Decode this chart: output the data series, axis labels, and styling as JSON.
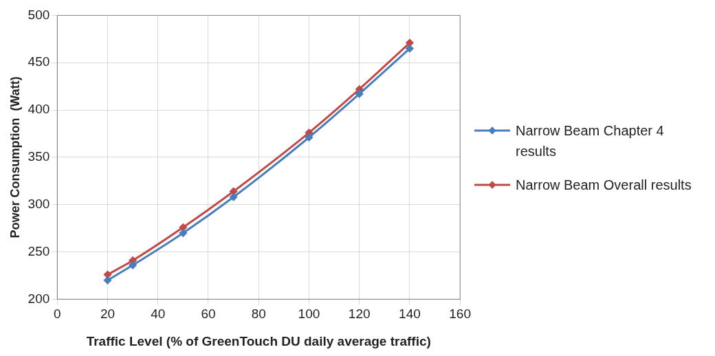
{
  "chart_data": {
    "type": "line",
    "xlabel": "Traffic Level (% of GreenTouch DU daily average traffic)",
    "ylabel": "Power Consumption  (Watt)",
    "x": [
      20,
      30,
      50,
      70,
      100,
      120,
      140
    ],
    "series": [
      {
        "name": "Narrow Beam Chapter 4 results",
        "color": "#4a7ebb",
        "values": [
          220,
          236,
          270,
          308,
          371,
          417,
          465
        ]
      },
      {
        "name": "Narrow Beam Overall results",
        "color": "#be4b48",
        "values": [
          226,
          241,
          276,
          314,
          376,
          422,
          471
        ]
      }
    ],
    "xlim": [
      0,
      160
    ],
    "xticks": [
      0,
      20,
      40,
      60,
      80,
      100,
      120,
      140,
      160
    ],
    "ylim": [
      200,
      500
    ],
    "yticks": [
      200,
      250,
      300,
      350,
      400,
      450,
      500
    ],
    "grid": true,
    "legend": "right",
    "marker": "diamond",
    "line_style": "solid"
  }
}
